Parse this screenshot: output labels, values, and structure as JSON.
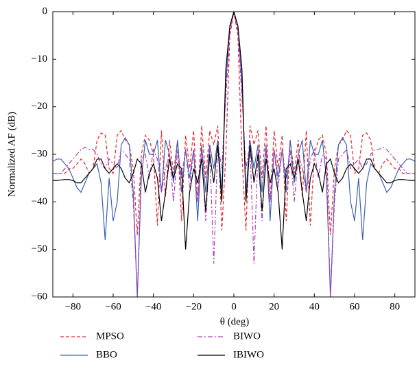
{
  "chart_data": {
    "type": "line",
    "xlabel": "θ (deg)",
    "ylabel": "Normalized AF (dB)",
    "xlim": [
      -90,
      90
    ],
    "ylim": [
      -60,
      0
    ],
    "xticks": [
      {
        "value": -80,
        "label": "−80"
      },
      {
        "value": -60,
        "label": "−60"
      },
      {
        "value": -40,
        "label": "−40"
      },
      {
        "value": -20,
        "label": "−20"
      },
      0,
      20,
      40,
      60,
      80
    ],
    "yticks": [
      0,
      {
        "value": -10,
        "label": "−10"
      },
      {
        "value": -20,
        "label": "−20"
      },
      {
        "value": -30,
        "label": "−30"
      },
      {
        "value": -40,
        "label": "−40"
      },
      {
        "value": -50,
        "label": "−50"
      },
      {
        "value": -60,
        "label": "−60"
      }
    ],
    "x": [
      -90,
      -88,
      -86,
      -84,
      -82,
      -80,
      -78,
      -76,
      -74,
      -72,
      -70,
      -68,
      -66,
      -64,
      -62,
      -60,
      -58,
      -56,
      -54,
      -52,
      -50,
      -48,
      -46,
      -44,
      -42,
      -40,
      -38,
      -36,
      -34,
      -32,
      -30,
      -28,
      -26,
      -24,
      -22,
      -20,
      -18,
      -16,
      -14,
      -12,
      -10,
      -8,
      -6,
      -4,
      -2,
      0,
      2,
      4,
      6,
      8,
      10,
      12,
      14,
      16,
      18,
      20,
      22,
      24,
      26,
      28,
      30,
      32,
      34,
      36,
      38,
      40,
      42,
      44,
      46,
      48,
      50,
      52,
      54,
      56,
      58,
      60,
      62,
      64,
      66,
      68,
      70,
      72,
      74,
      76,
      78,
      80,
      82,
      84,
      86,
      88,
      90
    ],
    "series": [
      {
        "name": "MPSO",
        "color": "#e8262b",
        "dash": "5,3",
        "values": [
          -34,
          -34,
          -34,
          -34,
          -33,
          -33,
          -32,
          -31,
          -32,
          -34,
          -33,
          -27,
          -25.5,
          -26,
          -33,
          -34,
          -26,
          -25,
          -27,
          -28,
          -33,
          -47,
          -30,
          -26,
          -27,
          -30,
          -45,
          -25,
          -39,
          -27,
          -34,
          -27,
          -44,
          -26,
          -33,
          -25,
          -40,
          -24,
          -35,
          -25,
          -28,
          -24,
          -46,
          -30,
          -5,
          0,
          -5,
          -30,
          -46,
          -24,
          -28,
          -25,
          -35,
          -24,
          -40,
          -25,
          -33,
          -26,
          -44,
          -27,
          -34,
          -27,
          -39,
          -25,
          -45,
          -30,
          -27,
          -26,
          -30,
          -47,
          -33,
          -28,
          -27,
          -25,
          -26,
          -34,
          -33,
          -26,
          -25.5,
          -27,
          -33,
          -34,
          -32,
          -31,
          -32,
          -33,
          -33,
          -34,
          -34,
          -34,
          -34
        ]
      },
      {
        "name": "BBO",
        "color": "#3d5fb0",
        "dash": "none",
        "values": [
          -31.5,
          -31,
          -31,
          -32,
          -33,
          -35,
          -37,
          -38,
          -36,
          -34,
          -33,
          -32,
          -36,
          -48,
          -35,
          -44,
          -40,
          -28,
          -26.5,
          -28,
          -38,
          -60,
          -35,
          -27,
          -30,
          -30,
          -27,
          -38,
          -27,
          -30,
          -36,
          -27,
          -38,
          -29,
          -35,
          -29,
          -44,
          -28,
          -38,
          -28,
          -33,
          -27,
          -38,
          -15,
          -3,
          0,
          -3,
          -15,
          -38,
          -27,
          -33,
          -28,
          -38,
          -28,
          -44,
          -29,
          -35,
          -29,
          -38,
          -27,
          -36,
          -30,
          -27,
          -38,
          -27,
          -30,
          -30,
          -27,
          -35,
          -60,
          -38,
          -28,
          -26.5,
          -28,
          -40,
          -44,
          -35,
          -48,
          -36,
          -32,
          -33,
          -34,
          -36,
          -38,
          -37,
          -35,
          -33,
          -32,
          -31,
          -31,
          -31.5
        ]
      },
      {
        "name": "BIWO",
        "color": "#b03cb8",
        "dash": "7,3,2,3",
        "values": [
          -34,
          -34,
          -34,
          -33,
          -32,
          -31,
          -30,
          -29,
          -28.5,
          -29,
          -29,
          -30,
          -32,
          -33,
          -31,
          -32,
          -33,
          -29,
          -30,
          -31,
          -40,
          -60,
          -31,
          -30,
          -35,
          -29,
          -31,
          -38,
          -33,
          -30,
          -40,
          -29,
          -35,
          -29,
          -37,
          -29,
          -40,
          -29,
          -44,
          -29,
          -53,
          -28,
          -33,
          -18,
          -4,
          0,
          -4,
          -18,
          -33,
          -28,
          -53,
          -29,
          -44,
          -29,
          -40,
          -29,
          -37,
          -29,
          -35,
          -29,
          -40,
          -30,
          -33,
          -38,
          -31,
          -29,
          -35,
          -30,
          -31,
          -60,
          -40,
          -31,
          -30,
          -29,
          -33,
          -32,
          -31,
          -33,
          -32,
          -30,
          -29,
          -29,
          -28.5,
          -29,
          -30,
          -31,
          -32,
          -33,
          -34,
          -34,
          -34
        ]
      },
      {
        "name": "IBIWO",
        "color": "#000000",
        "dash": "none",
        "values": [
          -35.5,
          -35.5,
          -35.4,
          -35.3,
          -35.3,
          -35.5,
          -36,
          -36,
          -35,
          -34,
          -33,
          -31,
          -31,
          -33,
          -34,
          -33,
          -32,
          -33,
          -35,
          -36,
          -34,
          -31,
          -32,
          -38,
          -34,
          -32,
          -35,
          -44,
          -38,
          -31,
          -35,
          -32,
          -33,
          -50,
          -38,
          -33,
          -36,
          -31,
          -42,
          -30,
          -36,
          -28,
          -40,
          -12,
          -3,
          0,
          -3,
          -12,
          -40,
          -28,
          -36,
          -30,
          -42,
          -31,
          -36,
          -33,
          -38,
          -50,
          -33,
          -32,
          -35,
          -31,
          -38,
          -44,
          -35,
          -32,
          -34,
          -38,
          -32,
          -31,
          -34,
          -36,
          -35,
          -33,
          -32,
          -33,
          -34,
          -33,
          -31,
          -31,
          -33,
          -34,
          -35,
          -36,
          -36,
          -35.5,
          -35.3,
          -35.3,
          -35.4,
          -35.5,
          -35.5
        ]
      }
    ]
  }
}
